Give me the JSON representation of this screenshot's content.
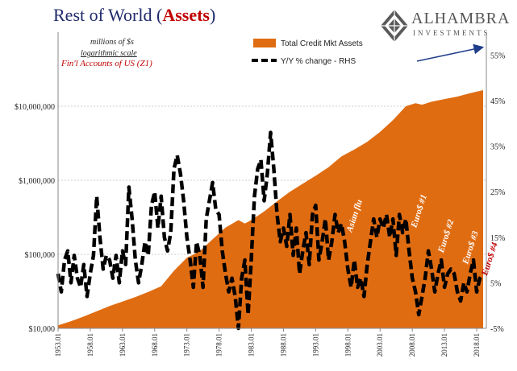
{
  "title": {
    "prefix": "Rest of World (",
    "accent": "Assets",
    "suffix": ")"
  },
  "logo": {
    "name": "ALHAMBRA",
    "sub": "INVESTMENTS",
    "icon": "diamond-logo-icon"
  },
  "notes": {
    "units": "millions of $s",
    "scale": "logarithmic scale",
    "source": "Fin'l Accounts of US (Z1)"
  },
  "colors": {
    "area": "#e06c12",
    "line": "#000000",
    "title": "#1f2a6b",
    "accent": "#c00000",
    "arrow": "#1f3d8a"
  },
  "chart_data": {
    "type": "area",
    "x_range": [
      1953.0,
      2019.5
    ],
    "left_axis": {
      "scale": "log",
      "range": [
        10000,
        100000000
      ],
      "ticks": [
        10000,
        100000,
        1000000,
        10000000
      ],
      "tick_labels": [
        "$10,000",
        "$100,000",
        "$1,000,000",
        "$10,000,000"
      ]
    },
    "right_axis": {
      "range": [
        -5,
        60
      ],
      "ticks": [
        -5,
        5,
        15,
        25,
        35,
        45,
        55
      ],
      "tick_labels": [
        "-5%",
        "5%",
        "15%",
        "25%",
        "35%",
        "45%",
        "55%"
      ]
    },
    "x_ticks": [
      1953,
      1958,
      1963,
      1968,
      1973,
      1978,
      1983,
      1988,
      1993,
      1998,
      2003,
      2008,
      2013,
      2018
    ],
    "x_tick_labels": [
      "1953.01",
      "1958.01",
      "1963.01",
      "1968.01",
      "1973.01",
      "1978.01",
      "1983.01",
      "1988.01",
      "1993.01",
      "1998.01",
      "2003.01",
      "2008.01",
      "2013.01",
      "2018.01"
    ],
    "series": [
      {
        "name": "Total Credit Mkt Assets",
        "style": "area",
        "axis": "left",
        "points": [
          [
            1953.0,
            11000
          ],
          [
            1955.0,
            12500
          ],
          [
            1957.0,
            14500
          ],
          [
            1959.0,
            17000
          ],
          [
            1961.0,
            20000
          ],
          [
            1963.0,
            23000
          ],
          [
            1965.0,
            26500
          ],
          [
            1967.0,
            31000
          ],
          [
            1969.0,
            37000
          ],
          [
            1971.0,
            60000
          ],
          [
            1973.0,
            90000
          ],
          [
            1975.0,
            110000
          ],
          [
            1977.0,
            160000
          ],
          [
            1979.0,
            230000
          ],
          [
            1981.0,
            290000
          ],
          [
            1982.0,
            260000
          ],
          [
            1983.0,
            290000
          ],
          [
            1985.0,
            380000
          ],
          [
            1987.0,
            520000
          ],
          [
            1989.0,
            700000
          ],
          [
            1991.0,
            900000
          ],
          [
            1993.0,
            1150000
          ],
          [
            1995.0,
            1500000
          ],
          [
            1997.0,
            2100000
          ],
          [
            1999.0,
            2600000
          ],
          [
            2001.0,
            3300000
          ],
          [
            2003.0,
            4500000
          ],
          [
            2005.0,
            6500000
          ],
          [
            2007.0,
            10000000
          ],
          [
            2008.5,
            11000000
          ],
          [
            2009.5,
            10500000
          ],
          [
            2011.0,
            11500000
          ],
          [
            2013.0,
            12500000
          ],
          [
            2015.0,
            13500000
          ],
          [
            2017.0,
            15000000
          ],
          [
            2019.0,
            16500000
          ]
        ]
      },
      {
        "name": "Y/Y % change - RHS",
        "style": "dashed-line",
        "axis": "right",
        "points": [
          [
            1953.0,
            7
          ],
          [
            1953.5,
            3
          ],
          [
            1954.0,
            10
          ],
          [
            1954.5,
            12
          ],
          [
            1955.0,
            5
          ],
          [
            1955.5,
            11
          ],
          [
            1956.0,
            6
          ],
          [
            1956.5,
            4
          ],
          [
            1957.0,
            9
          ],
          [
            1957.5,
            2
          ],
          [
            1958.0,
            7
          ],
          [
            1958.5,
            11
          ],
          [
            1959.0,
            24
          ],
          [
            1959.5,
            15
          ],
          [
            1960.0,
            8
          ],
          [
            1960.5,
            11
          ],
          [
            1961.0,
            10
          ],
          [
            1961.5,
            6
          ],
          [
            1962.0,
            11
          ],
          [
            1962.5,
            5
          ],
          [
            1963.0,
            12
          ],
          [
            1963.5,
            9
          ],
          [
            1964.0,
            26
          ],
          [
            1964.5,
            19
          ],
          [
            1965.0,
            10
          ],
          [
            1965.5,
            5
          ],
          [
            1966.0,
            9
          ],
          [
            1966.5,
            14
          ],
          [
            1967.0,
            11
          ],
          [
            1967.5,
            22
          ],
          [
            1968.0,
            25
          ],
          [
            1968.5,
            17
          ],
          [
            1969.0,
            24
          ],
          [
            1969.5,
            15
          ],
          [
            1970.0,
            12
          ],
          [
            1970.5,
            16
          ],
          [
            1971.0,
            30
          ],
          [
            1971.5,
            33
          ],
          [
            1972.0,
            29
          ],
          [
            1972.5,
            23
          ],
          [
            1973.0,
            15
          ],
          [
            1973.5,
            10
          ],
          [
            1974.0,
            4
          ],
          [
            1974.5,
            14
          ],
          [
            1975.0,
            11
          ],
          [
            1975.5,
            4
          ],
          [
            1976.0,
            19
          ],
          [
            1976.5,
            23
          ],
          [
            1977.0,
            27
          ],
          [
            1977.5,
            21
          ],
          [
            1978.0,
            20
          ],
          [
            1978.5,
            12
          ],
          [
            1979.0,
            7
          ],
          [
            1979.5,
            3
          ],
          [
            1980.0,
            6
          ],
          [
            1980.5,
            2
          ],
          [
            1981.0,
            -5
          ],
          [
            1981.5,
            6
          ],
          [
            1982.0,
            10
          ],
          [
            1982.5,
            -2
          ],
          [
            1983.0,
            10
          ],
          [
            1983.5,
            24
          ],
          [
            1984.0,
            30
          ],
          [
            1984.5,
            32
          ],
          [
            1985.0,
            23
          ],
          [
            1985.5,
            29
          ],
          [
            1986.0,
            38
          ],
          [
            1986.5,
            30
          ],
          [
            1987.0,
            20
          ],
          [
            1987.5,
            14
          ],
          [
            1988.0,
            17
          ],
          [
            1988.5,
            13
          ],
          [
            1989.0,
            20
          ],
          [
            1989.5,
            11
          ],
          [
            1990.0,
            17
          ],
          [
            1990.5,
            7
          ],
          [
            1991.0,
            12
          ],
          [
            1991.5,
            16
          ],
          [
            1992.0,
            9
          ],
          [
            1992.5,
            20
          ],
          [
            1993.0,
            22
          ],
          [
            1993.5,
            10
          ],
          [
            1994.0,
            14
          ],
          [
            1994.5,
            19
          ],
          [
            1995.0,
            10
          ],
          [
            1995.5,
            14
          ],
          [
            1996.0,
            20
          ],
          [
            1996.5,
            16
          ],
          [
            1997.0,
            18
          ],
          [
            1997.5,
            14
          ],
          [
            1998.0,
            8
          ],
          [
            1998.5,
            4
          ],
          [
            1999.0,
            10
          ],
          [
            1999.5,
            4
          ],
          [
            2000.0,
            6
          ],
          [
            2000.5,
            2
          ],
          [
            2001.0,
            9
          ],
          [
            2001.5,
            14
          ],
          [
            2002.0,
            19
          ],
          [
            2002.5,
            15
          ],
          [
            2003.0,
            19
          ],
          [
            2003.5,
            17
          ],
          [
            2004.0,
            20
          ],
          [
            2004.5,
            15
          ],
          [
            2005.0,
            19
          ],
          [
            2005.5,
            11
          ],
          [
            2006.0,
            20
          ],
          [
            2006.5,
            16
          ],
          [
            2007.0,
            19
          ],
          [
            2007.5,
            12
          ],
          [
            2008.0,
            6
          ],
          [
            2008.5,
            3
          ],
          [
            2009.0,
            -2
          ],
          [
            2009.5,
            2
          ],
          [
            2010.0,
            6
          ],
          [
            2010.5,
            12
          ],
          [
            2011.0,
            8
          ],
          [
            2011.5,
            3
          ],
          [
            2012.0,
            7
          ],
          [
            2012.5,
            10
          ],
          [
            2013.0,
            4
          ],
          [
            2013.5,
            7
          ],
          [
            2014.0,
            8
          ],
          [
            2014.5,
            7
          ],
          [
            2015.0,
            3
          ],
          [
            2015.5,
            1
          ],
          [
            2016.0,
            5
          ],
          [
            2016.5,
            3
          ],
          [
            2017.0,
            7
          ],
          [
            2017.5,
            10
          ],
          [
            2018.0,
            3
          ],
          [
            2018.5,
            6
          ],
          [
            2019.0,
            7
          ]
        ]
      }
    ],
    "annotations": [
      {
        "text": "Asian flu",
        "x": 1998.6,
        "y": 16,
        "color": "#ffffff"
      },
      {
        "text": "Euro$ #1",
        "x": 2008.6,
        "y": 17,
        "color": "#ffffff"
      },
      {
        "text": "Euro$ #2",
        "x": 2012.8,
        "y": 11.5,
        "color": "#ffffff"
      },
      {
        "text": "Euro$ #3",
        "x": 2016.6,
        "y": 9,
        "color": "#ffffff"
      },
      {
        "text": "Euro$ #4",
        "x": 2019.6,
        "y": 6.5,
        "color": "#c00000"
      }
    ],
    "legend_placement": "top-center",
    "grid": "horizontal"
  }
}
